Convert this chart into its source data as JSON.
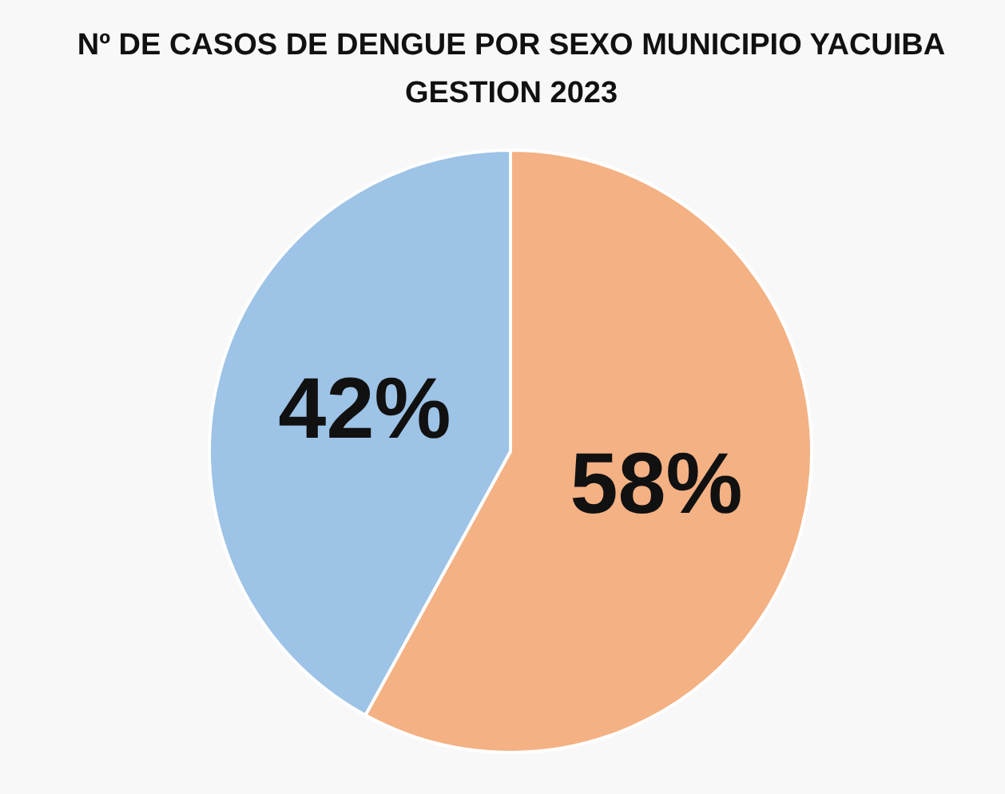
{
  "chart_data": {
    "type": "pie",
    "title": "Nº DE CASOS DE DENGUE POR SEXO MUNICIPIO YACUIBA GESTION 2023",
    "categories": [
      null,
      null
    ],
    "values": [
      58,
      42
    ],
    "colors": [
      "#f4b183",
      "#9dc3e6"
    ],
    "value_labels": [
      "58%",
      "42%"
    ]
  }
}
